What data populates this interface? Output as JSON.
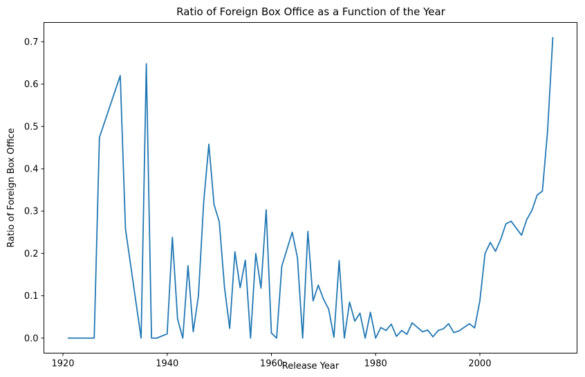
{
  "chart_data": {
    "type": "line",
    "title": "Ratio of Foreign Box Office as a Function of the Year",
    "xlabel": "Release Year",
    "ylabel": "Ratio of Foreign Box Office",
    "xlim": [
      1916.35,
      2018.65
    ],
    "ylim": [
      -0.0355,
      0.7455
    ],
    "xticks": [
      1920,
      1940,
      1960,
      1980,
      2000
    ],
    "xtick_labels": [
      "1920",
      "1940",
      "1960",
      "1980",
      "2000"
    ],
    "yticks": [
      0.0,
      0.1,
      0.2,
      0.3,
      0.4,
      0.5,
      0.6,
      0.7
    ],
    "ytick_labels": [
      "0.0",
      "0.1",
      "0.2",
      "0.3",
      "0.4",
      "0.5",
      "0.6",
      "0.7"
    ],
    "grid": false,
    "line_color": "#1f77b4",
    "series": [
      {
        "points": [
          [
            1921,
            0.0
          ],
          [
            1926,
            0.0
          ],
          [
            1927,
            0.474
          ],
          [
            1931,
            0.62
          ],
          [
            1932,
            0.258
          ],
          [
            1935,
            0.0
          ],
          [
            1936,
            0.648
          ],
          [
            1937,
            0.0
          ],
          [
            1938,
            0.0
          ],
          [
            1940,
            0.01
          ],
          [
            1941,
            0.238
          ],
          [
            1942,
            0.045
          ],
          [
            1943,
            0.0
          ],
          [
            1944,
            0.171
          ],
          [
            1945,
            0.015
          ],
          [
            1946,
            0.1
          ],
          [
            1947,
            0.32
          ],
          [
            1948,
            0.458
          ],
          [
            1949,
            0.315
          ],
          [
            1950,
            0.275
          ],
          [
            1951,
            0.12
          ],
          [
            1952,
            0.023
          ],
          [
            1953,
            0.204
          ],
          [
            1954,
            0.119
          ],
          [
            1955,
            0.184
          ],
          [
            1956,
            0.0
          ],
          [
            1957,
            0.2
          ],
          [
            1958,
            0.118
          ],
          [
            1959,
            0.303
          ],
          [
            1960,
            0.012
          ],
          [
            1961,
            0.0
          ],
          [
            1962,
            0.17
          ],
          [
            1964,
            0.25
          ],
          [
            1965,
            0.19
          ],
          [
            1966,
            0.0
          ],
          [
            1967,
            0.252
          ],
          [
            1968,
            0.088
          ],
          [
            1969,
            0.125
          ],
          [
            1970,
            0.092
          ],
          [
            1971,
            0.068
          ],
          [
            1972,
            0.002
          ],
          [
            1973,
            0.183
          ],
          [
            1974,
            0.0
          ],
          [
            1975,
            0.085
          ],
          [
            1976,
            0.04
          ],
          [
            1977,
            0.059
          ],
          [
            1978,
            0.0
          ],
          [
            1979,
            0.061
          ],
          [
            1980,
            0.0
          ],
          [
            1981,
            0.025
          ],
          [
            1982,
            0.018
          ],
          [
            1983,
            0.033
          ],
          [
            1984,
            0.004
          ],
          [
            1985,
            0.018
          ],
          [
            1986,
            0.009
          ],
          [
            1987,
            0.036
          ],
          [
            1989,
            0.015
          ],
          [
            1990,
            0.019
          ],
          [
            1991,
            0.003
          ],
          [
            1992,
            0.018
          ],
          [
            1993,
            0.022
          ],
          [
            1994,
            0.034
          ],
          [
            1995,
            0.013
          ],
          [
            1996,
            0.017
          ],
          [
            1998,
            0.034
          ],
          [
            1999,
            0.024
          ],
          [
            2000,
            0.088
          ],
          [
            2001,
            0.2
          ],
          [
            2002,
            0.226
          ],
          [
            2003,
            0.205
          ],
          [
            2004,
            0.233
          ],
          [
            2005,
            0.27
          ],
          [
            2006,
            0.276
          ],
          [
            2008,
            0.243
          ],
          [
            2009,
            0.28
          ],
          [
            2010,
            0.302
          ],
          [
            2011,
            0.338
          ],
          [
            2012,
            0.347
          ],
          [
            2013,
            0.49
          ],
          [
            2014,
            0.71
          ]
        ]
      }
    ]
  }
}
